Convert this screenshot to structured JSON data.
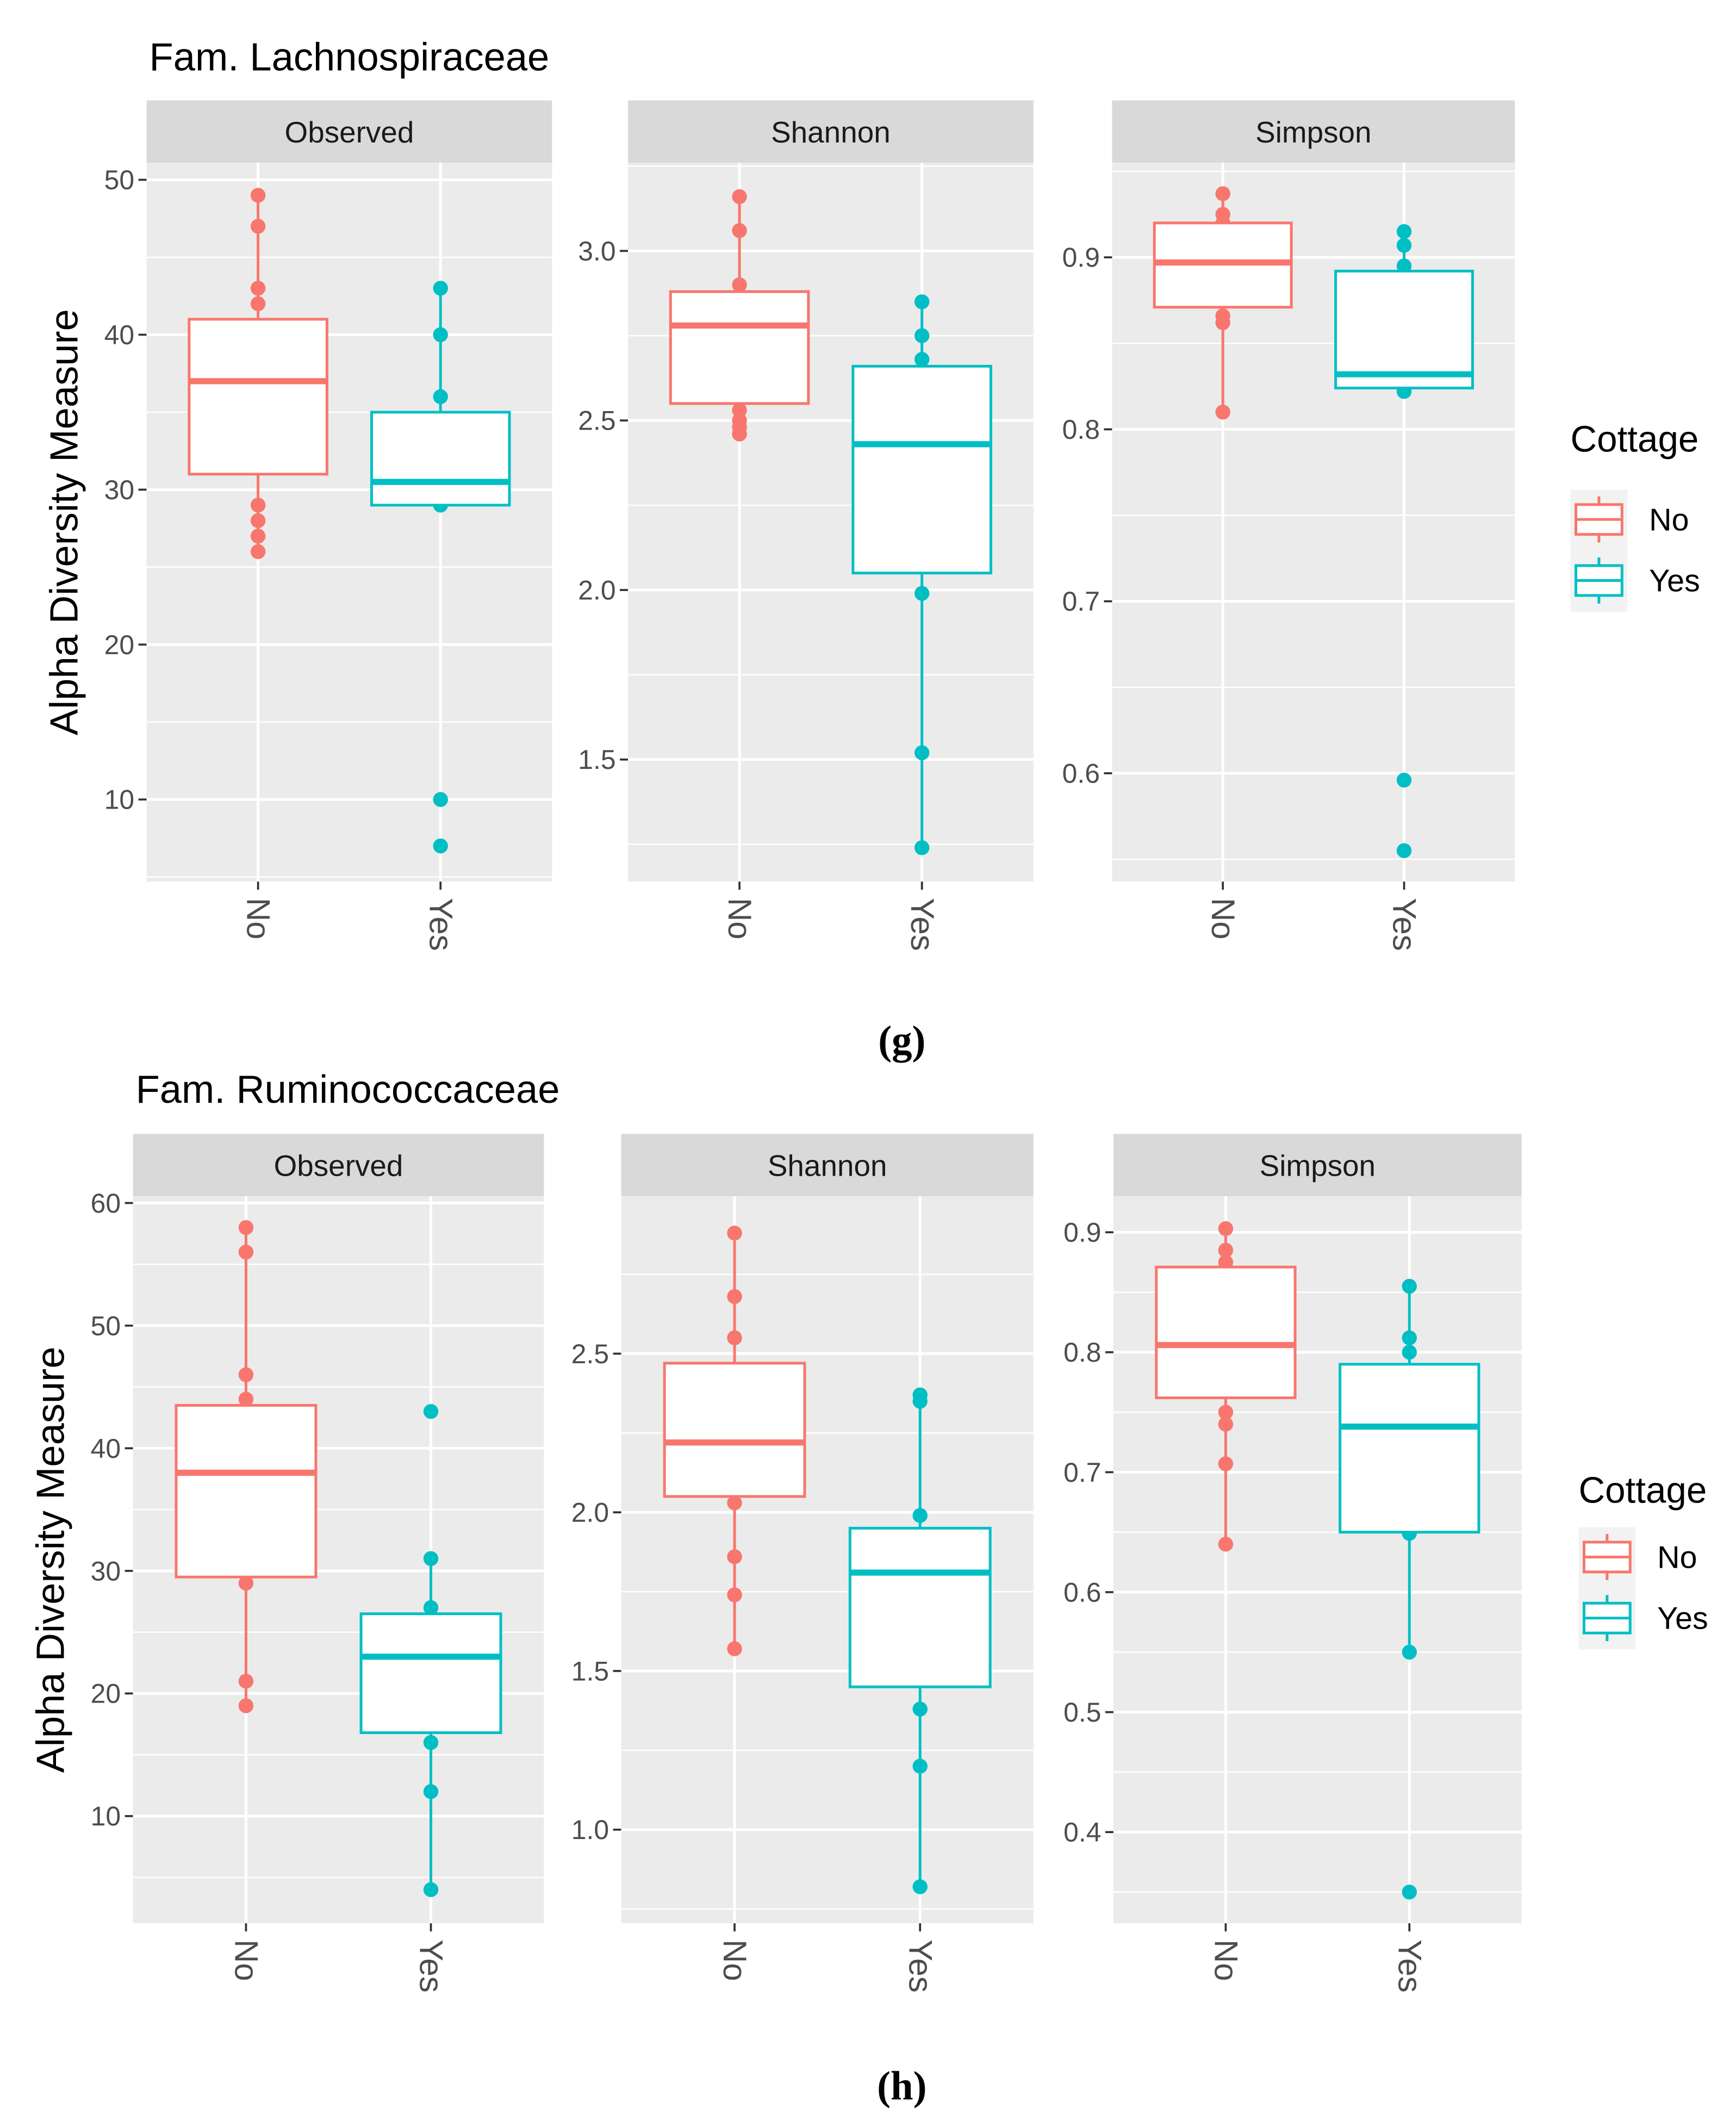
{
  "colors": {
    "No": "#F8766D",
    "Yes": "#00BFC4",
    "panel_bg": "#EBEBEB",
    "strip_bg": "#D9D9D9",
    "grid": "#FFFFFF",
    "tick_text": "#4D4D4D"
  },
  "chart_data": [
    {
      "type": "box",
      "title": "Fam. Lachnospiraceae",
      "caption": "(g)",
      "ylabel": "Alpha Diversity Measure",
      "categories": [
        "No",
        "Yes"
      ],
      "legend": {
        "title": "Cottage",
        "entries": [
          "No",
          "Yes"
        ],
        "position": "right"
      },
      "grid": true,
      "facets": [
        {
          "name": "Observed",
          "ylim": [
            4.7,
            51.1
          ],
          "yticks": [
            10,
            20,
            30,
            40,
            50
          ],
          "ytick_labels": [
            "10",
            "20",
            "30",
            "40",
            "50"
          ],
          "boxes": [
            {
              "group": "No",
              "whisker_low": 26,
              "q1": 31,
              "median": 37,
              "q3": 41,
              "whisker_high": 49,
              "points": [
                49,
                47,
                43,
                42,
                29,
                28,
                27,
                26
              ]
            },
            {
              "group": "Yes",
              "whisker_low": 29,
              "q1": 29,
              "median": 30.5,
              "q3": 35,
              "whisker_high": 43,
              "points": [
                43,
                40,
                36,
                29,
                10,
                7
              ]
            }
          ]
        },
        {
          "name": "Shannon",
          "ylim": [
            1.14,
            3.26
          ],
          "yticks": [
            1.5,
            2.0,
            2.5,
            3.0
          ],
          "ytick_labels": [
            "1.5",
            "2.0",
            "2.5",
            "3.0"
          ],
          "boxes": [
            {
              "group": "No",
              "whisker_low": 2.46,
              "q1": 2.55,
              "median": 2.78,
              "q3": 2.88,
              "whisker_high": 3.16,
              "points": [
                3.16,
                3.06,
                2.9,
                2.53,
                2.5,
                2.48,
                2.46
              ]
            },
            {
              "group": "Yes",
              "whisker_low": 1.24,
              "q1": 2.05,
              "median": 2.43,
              "q3": 2.66,
              "whisker_high": 2.85,
              "points": [
                2.85,
                2.75,
                2.68,
                1.99,
                1.52,
                1.24
              ]
            }
          ]
        },
        {
          "name": "Simpson",
          "ylim": [
            0.537,
            0.955
          ],
          "yticks": [
            0.6,
            0.7,
            0.8,
            0.9
          ],
          "ytick_labels": [
            "0.6",
            "0.7",
            "0.8",
            "0.9"
          ],
          "boxes": [
            {
              "group": "No",
              "whisker_low": 0.81,
              "q1": 0.871,
              "median": 0.897,
              "q3": 0.92,
              "whisker_high": 0.937,
              "points": [
                0.937,
                0.925,
                0.92,
                0.866,
                0.862,
                0.81
              ]
            },
            {
              "group": "Yes",
              "whisker_low": 0.822,
              "q1": 0.824,
              "median": 0.832,
              "q3": 0.892,
              "whisker_high": 0.915,
              "points": [
                0.915,
                0.907,
                0.895,
                0.822,
                0.596,
                0.555
              ]
            }
          ]
        }
      ]
    },
    {
      "type": "box",
      "title": "Fam. Ruminococcaceae",
      "caption": "(h)",
      "ylabel": "Alpha Diversity Measure",
      "categories": [
        "No",
        "Yes"
      ],
      "legend": {
        "title": "Cottage",
        "entries": [
          "No",
          "Yes"
        ],
        "position": "right"
      },
      "grid": true,
      "facets": [
        {
          "name": "Observed",
          "ylim": [
            1.26,
            60.55
          ],
          "yticks": [
            10,
            20,
            30,
            40,
            50,
            60
          ],
          "ytick_labels": [
            "10",
            "20",
            "30",
            "40",
            "50",
            "60"
          ],
          "boxes": [
            {
              "group": "No",
              "whisker_low": 19,
              "q1": 29.5,
              "median": 38,
              "q3": 43.5,
              "whisker_high": 58,
              "points": [
                58,
                56,
                46,
                44,
                29,
                21,
                19
              ]
            },
            {
              "group": "Yes",
              "whisker_low": 4,
              "q1": 16.8,
              "median": 23,
              "q3": 26.5,
              "whisker_high": 31,
              "points": [
                43,
                31,
                27,
                16,
                12,
                4
              ]
            }
          ]
        },
        {
          "name": "Shannon",
          "ylim": [
            0.705,
            2.996
          ],
          "yticks": [
            1.0,
            1.5,
            2.0,
            2.5
          ],
          "ytick_labels": [
            "1.0",
            "1.5",
            "2.0",
            "2.5"
          ],
          "boxes": [
            {
              "group": "No",
              "whisker_low": 1.57,
              "q1": 2.05,
              "median": 2.22,
              "q3": 2.47,
              "whisker_high": 2.88,
              "points": [
                2.88,
                2.68,
                2.55,
                2.03,
                1.86,
                1.74,
                1.57
              ]
            },
            {
              "group": "Yes",
              "whisker_low": 0.82,
              "q1": 1.45,
              "median": 1.81,
              "q3": 1.95,
              "whisker_high": 2.37,
              "points": [
                2.37,
                2.35,
                1.99,
                1.38,
                1.2,
                0.82
              ]
            }
          ]
        },
        {
          "name": "Simpson",
          "ylim": [
            0.324,
            0.93
          ],
          "yticks": [
            0.4,
            0.5,
            0.6,
            0.7,
            0.8,
            0.9
          ],
          "ytick_labels": [
            "0.4",
            "0.5",
            "0.6",
            "0.7",
            "0.8",
            "0.9"
          ],
          "boxes": [
            {
              "group": "No",
              "whisker_low": 0.64,
              "q1": 0.762,
              "median": 0.806,
              "q3": 0.871,
              "whisker_high": 0.903,
              "points": [
                0.903,
                0.885,
                0.875,
                0.75,
                0.74,
                0.707,
                0.64
              ]
            },
            {
              "group": "Yes",
              "whisker_low": 0.55,
              "q1": 0.65,
              "median": 0.738,
              "q3": 0.79,
              "whisker_high": 0.855,
              "points": [
                0.855,
                0.812,
                0.8,
                0.649,
                0.55,
                0.35
              ]
            }
          ]
        }
      ]
    }
  ]
}
